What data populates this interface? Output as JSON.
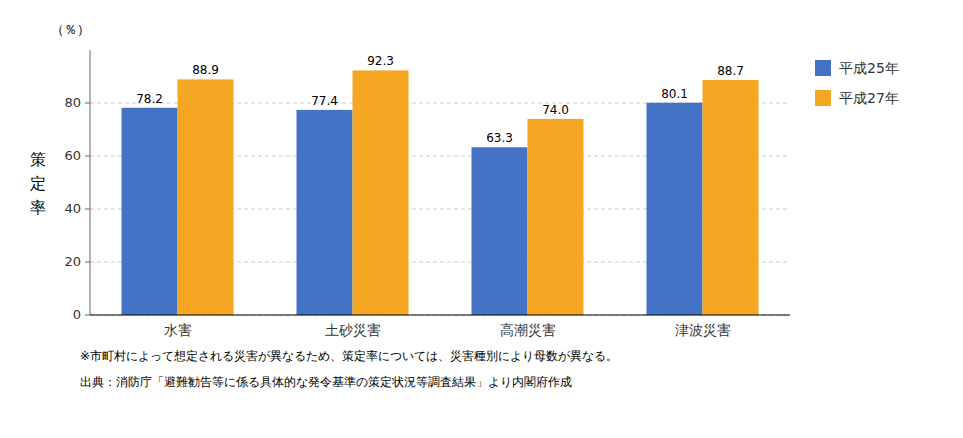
{
  "chart_data": {
    "type": "bar",
    "y_label": "策定率",
    "annotations": [
      "（％）",
      "※市町村によって想定される災害が異なるため、策定率については、災害種別により母数が異なる。",
      "出典：消防庁「避難勧告等に係る具体的な発令基準の策定状況等調査結果」より内閣府作成"
    ],
    "categories": [
      "水害",
      "土砂災害",
      "高潮災害",
      "津波災害"
    ],
    "series": [
      {
        "name": "平成25年",
        "color": "#4472C4",
        "values": [
          78.2,
          77.4,
          63.3,
          80.1
        ],
        "value_labels": [
          "78.2",
          "77.4",
          "63.3",
          "80.1"
        ]
      },
      {
        "name": "平成27年",
        "color": "#F5A623",
        "values": [
          88.9,
          92.3,
          74.0,
          88.7
        ],
        "value_labels": [
          "88.9",
          "92.3",
          "74.0",
          "88.7"
        ]
      }
    ],
    "ylim": [
      0,
      100
    ],
    "yticks": [
      0,
      20,
      40,
      60,
      80
    ],
    "grid": true,
    "legend": "upper right",
    "data_labels": true
  }
}
